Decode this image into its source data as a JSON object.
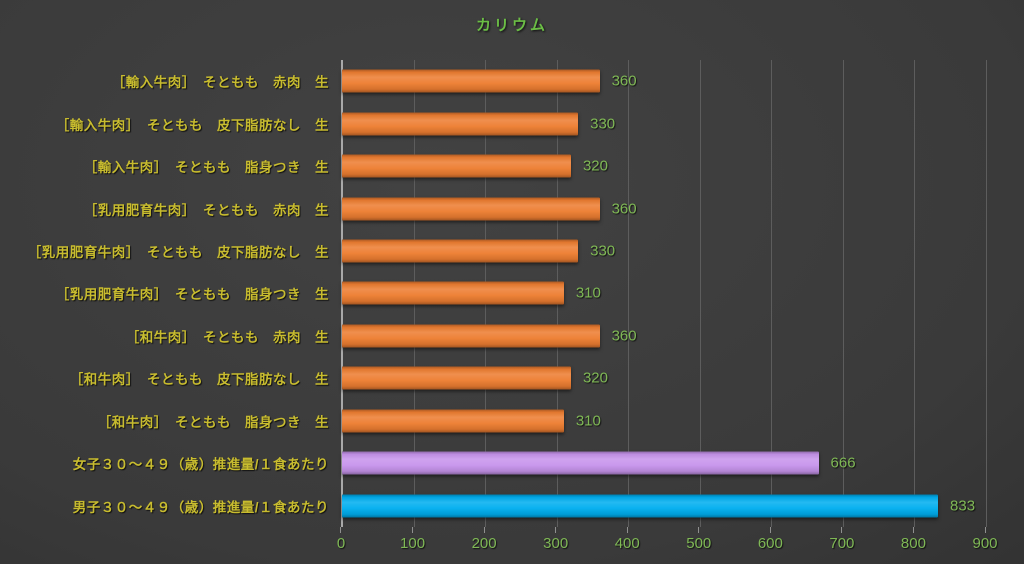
{
  "title": "カリウム",
  "chart_data": {
    "type": "bar",
    "orientation": "horizontal",
    "title": "カリウム",
    "categories": [
      "［輸入牛肉］　そともも　赤肉　生",
      "［輸入牛肉］　そともも　皮下脂肪なし　生",
      "［輸入牛肉］　そともも　脂身つき　生",
      "［乳用肥育牛肉］　そともも　赤肉　生",
      "［乳用肥育牛肉］　そともも　皮下脂肪なし　生",
      "［乳用肥育牛肉］　そともも　脂身つき　生",
      "［和牛肉］　そともも　赤肉　生",
      "［和牛肉］　そともも　皮下脂肪なし　生",
      "［和牛肉］　そともも　脂身つき　生",
      "女子３０～４９（歳）推進量/１食あたり",
      "男子３０～４９（歳）推進量/１食あたり"
    ],
    "values": [
      360,
      330,
      320,
      360,
      330,
      310,
      360,
      320,
      310,
      666,
      833
    ],
    "bar_color_keys": [
      "orange",
      "orange",
      "orange",
      "orange",
      "orange",
      "orange",
      "orange",
      "orange",
      "orange",
      "purple",
      "blue"
    ],
    "data_labels": [
      360,
      330,
      320,
      360,
      330,
      310,
      360,
      320,
      310,
      666,
      833
    ],
    "xlabel": "",
    "ylabel": "",
    "xlim": [
      0,
      900
    ],
    "xticks": [
      0,
      100,
      200,
      300,
      400,
      500,
      600,
      700,
      800,
      900
    ],
    "grid": true,
    "legend_position": "none"
  },
  "colors": {
    "background_center": "#424242",
    "background_edge": "#222222",
    "title_text": "#6BBE45",
    "category_text": "#C8BC2F",
    "value_text": "#7FB855",
    "tick_text": "#7FB855",
    "gridline": "#5d5d5d",
    "axis_line": "#A9A9A9",
    "orange": "#ED7D31",
    "purple": "#C794EC",
    "blue": "#00AEEF"
  }
}
